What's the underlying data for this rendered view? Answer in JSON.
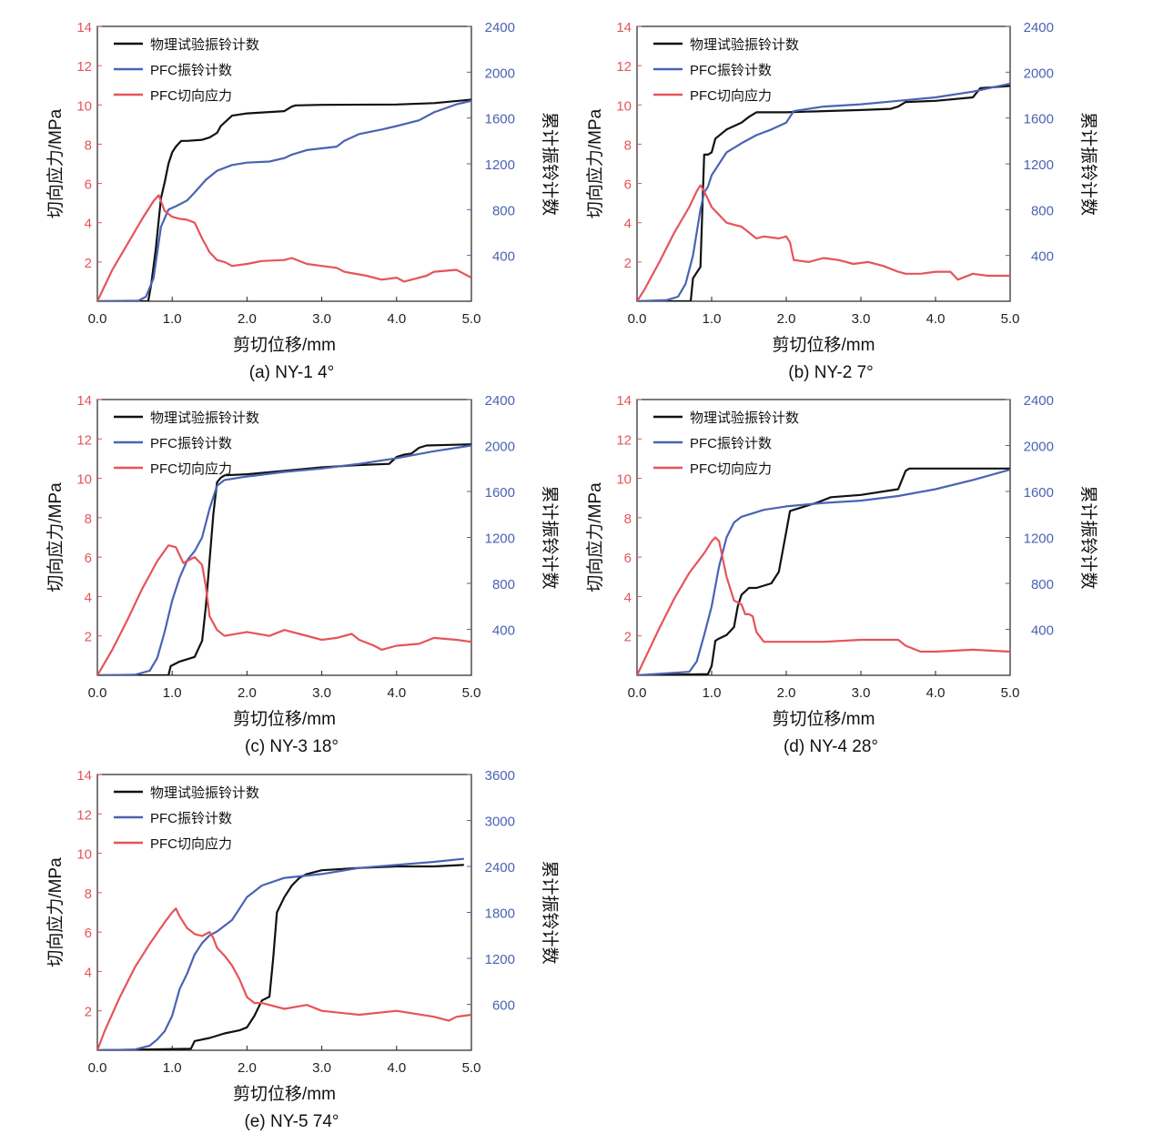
{
  "figure": {
    "left_axis_color": "#e5545a",
    "right_axis_color": "#4a63b3",
    "series_colors": {
      "experiment": "#111111",
      "pfc_ring": "#4a63b3",
      "pfc_stress": "#e5545a"
    }
  },
  "chart_data": [
    {
      "type": "line",
      "caption": "(a) NY-1   4°",
      "xlabel": "剪切位移/mm",
      "ylabel_left": "切向应力/MPa",
      "ylabel_right": "累计振铃计数",
      "xlim": [
        0,
        5
      ],
      "xticks": [
        "0.0",
        "1.0",
        "2.0",
        "3.0",
        "4.0",
        "5.0"
      ],
      "ylim_left": [
        0,
        14
      ],
      "yticks_left": [
        "2",
        "4",
        "6",
        "8",
        "10",
        "12",
        "14"
      ],
      "ylim_right": [
        0,
        2400
      ],
      "yticks_right": [
        "400",
        "800",
        "1200",
        "1600",
        "2000",
        "2400"
      ],
      "legend": [
        "物理试验振铃计数",
        "PFC振铃计数",
        "PFC切向应力"
      ],
      "series": [
        {
          "name": "物理试验振铃计数",
          "axis": "right",
          "x": [
            0,
            0.68,
            0.72,
            0.78,
            0.85,
            0.9,
            0.95,
            1.0,
            1.05,
            1.12,
            1.2,
            1.4,
            1.5,
            1.6,
            1.65,
            1.75,
            1.8,
            2.0,
            2.5,
            2.6,
            2.65,
            3.0,
            4.0,
            4.5,
            5.0
          ],
          "y": [
            0,
            0,
            150,
            450,
            900,
            1040,
            1200,
            1300,
            1350,
            1400,
            1400,
            1410,
            1430,
            1470,
            1530,
            1590,
            1620,
            1640,
            1660,
            1700,
            1710,
            1715,
            1718,
            1730,
            1760
          ]
        },
        {
          "name": "PFC振铃计数",
          "axis": "right",
          "x": [
            0,
            0.55,
            0.65,
            0.75,
            0.85,
            0.95,
            1.05,
            1.2,
            1.3,
            1.45,
            1.6,
            1.8,
            2.0,
            2.3,
            2.5,
            2.6,
            2.8,
            3.2,
            3.3,
            3.5,
            3.8,
            4.0,
            4.3,
            4.5,
            4.8,
            5.0
          ],
          "y": [
            0,
            5,
            40,
            200,
            650,
            800,
            830,
            880,
            950,
            1060,
            1140,
            1190,
            1210,
            1220,
            1250,
            1280,
            1320,
            1350,
            1400,
            1460,
            1500,
            1530,
            1580,
            1650,
            1720,
            1750
          ]
        },
        {
          "name": "PFC切向应力",
          "axis": "left",
          "x": [
            0,
            0.2,
            0.4,
            0.6,
            0.75,
            0.82,
            0.9,
            1.0,
            1.1,
            1.2,
            1.3,
            1.4,
            1.5,
            1.6,
            1.7,
            1.8,
            2.0,
            2.2,
            2.5,
            2.6,
            2.8,
            3.0,
            3.2,
            3.3,
            3.6,
            3.8,
            4.0,
            4.1,
            4.2,
            4.4,
            4.5,
            4.8,
            5.0
          ],
          "y": [
            0,
            1.6,
            2.9,
            4.2,
            5.1,
            5.4,
            4.6,
            4.3,
            4.2,
            4.15,
            4.0,
            3.2,
            2.5,
            2.1,
            2.0,
            1.8,
            1.9,
            2.05,
            2.1,
            2.2,
            1.9,
            1.8,
            1.7,
            1.5,
            1.3,
            1.1,
            1.2,
            1.0,
            1.1,
            1.3,
            1.5,
            1.6,
            1.2
          ]
        }
      ]
    },
    {
      "type": "line",
      "caption": "(b) NY-2   7°",
      "xlabel": "剪切位移/mm",
      "ylabel_left": "切向应力/MPa",
      "ylabel_right": "累计振铃计数",
      "xlim": [
        0,
        5
      ],
      "xticks": [
        "0.0",
        "1.0",
        "2.0",
        "3.0",
        "4.0",
        "5.0"
      ],
      "ylim_left": [
        0,
        14
      ],
      "yticks_left": [
        "2",
        "4",
        "6",
        "8",
        "10",
        "12",
        "14"
      ],
      "ylim_right": [
        0,
        2400
      ],
      "yticks_right": [
        "400",
        "800",
        "1200",
        "1600",
        "2000",
        "2400"
      ],
      "legend": [
        "物理试验振铃计数",
        "PFC振铃计数",
        "PFC切向应力"
      ],
      "series": [
        {
          "name": "物理试验振铃计数",
          "axis": "right",
          "x": [
            0,
            0.72,
            0.75,
            0.85,
            0.9,
            0.95,
            1.0,
            1.05,
            1.2,
            1.4,
            1.5,
            1.6,
            2.0,
            2.5,
            3.0,
            3.4,
            3.5,
            3.6,
            4.0,
            4.5,
            4.6,
            4.8,
            5.0
          ],
          "y": [
            0,
            0,
            200,
            300,
            1280,
            1280,
            1300,
            1420,
            1500,
            1560,
            1610,
            1650,
            1650,
            1660,
            1670,
            1680,
            1700,
            1740,
            1750,
            1780,
            1860,
            1870,
            1880
          ]
        },
        {
          "name": "PFC振铃计数",
          "axis": "right",
          "x": [
            0,
            0.4,
            0.55,
            0.65,
            0.75,
            0.85,
            0.9,
            0.95,
            1.0,
            1.1,
            1.2,
            1.4,
            1.6,
            1.8,
            2.0,
            2.1,
            2.5,
            3.0,
            3.5,
            4.0,
            4.5,
            5.0
          ],
          "y": [
            0,
            10,
            40,
            150,
            400,
            800,
            950,
            1000,
            1100,
            1200,
            1300,
            1380,
            1450,
            1500,
            1560,
            1660,
            1700,
            1720,
            1750,
            1780,
            1830,
            1900
          ]
        },
        {
          "name": "PFC切向应力",
          "axis": "left",
          "x": [
            0,
            0.1,
            0.3,
            0.5,
            0.7,
            0.8,
            0.85,
            0.9,
            1.0,
            1.1,
            1.2,
            1.3,
            1.4,
            1.5,
            1.6,
            1.7,
            1.9,
            2.0,
            2.05,
            2.1,
            2.3,
            2.5,
            2.7,
            2.9,
            3.1,
            3.3,
            3.5,
            3.6,
            3.8,
            4.0,
            4.2,
            4.3,
            4.5,
            4.7,
            5.0
          ],
          "y": [
            0,
            0.6,
            2.0,
            3.5,
            4.8,
            5.6,
            5.9,
            5.6,
            4.8,
            4.4,
            4.0,
            3.9,
            3.8,
            3.5,
            3.2,
            3.3,
            3.2,
            3.3,
            3.0,
            2.1,
            2.0,
            2.2,
            2.1,
            1.9,
            2.0,
            1.8,
            1.5,
            1.4,
            1.4,
            1.5,
            1.5,
            1.1,
            1.4,
            1.3,
            1.3
          ]
        }
      ]
    },
    {
      "type": "line",
      "caption": "(c) NY-3   18°",
      "xlabel": "剪切位移/mm",
      "ylabel_left": "切向应力/MPa",
      "ylabel_right": "累计振铃计数",
      "xlim": [
        0,
        5
      ],
      "xticks": [
        "0.0",
        "1.0",
        "2.0",
        "3.0",
        "4.0",
        "5.0"
      ],
      "ylim_left": [
        0,
        14
      ],
      "yticks_left": [
        "2",
        "4",
        "6",
        "8",
        "10",
        "12",
        "14"
      ],
      "ylim_right": [
        0,
        2400
      ],
      "yticks_right": [
        "400",
        "800",
        "1200",
        "1600",
        "2000",
        "2400"
      ],
      "legend": [
        "物理试验振铃计数",
        "PFC振铃计数",
        "PFC切向应力"
      ],
      "series": [
        {
          "name": "物理试验振铃计数",
          "axis": "right",
          "x": [
            0,
            0.95,
            0.98,
            1.1,
            1.3,
            1.4,
            1.45,
            1.5,
            1.55,
            1.6,
            1.65,
            1.7,
            2.0,
            2.5,
            3.0,
            3.5,
            3.9,
            4.0,
            4.1,
            4.2,
            4.3,
            4.4,
            5.0
          ],
          "y": [
            0,
            0,
            80,
            120,
            160,
            300,
            600,
            1000,
            1400,
            1680,
            1720,
            1740,
            1750,
            1780,
            1810,
            1830,
            1840,
            1900,
            1920,
            1930,
            1980,
            2000,
            2010
          ]
        },
        {
          "name": "PFC振铃计数",
          "axis": "right",
          "x": [
            0,
            0.5,
            0.7,
            0.8,
            0.9,
            1.0,
            1.1,
            1.2,
            1.3,
            1.4,
            1.5,
            1.6,
            1.7,
            2.0,
            2.5,
            3.0,
            3.5,
            4.0,
            4.5,
            5.0
          ],
          "y": [
            0,
            5,
            40,
            150,
            380,
            650,
            850,
            1000,
            1080,
            1200,
            1450,
            1650,
            1700,
            1730,
            1770,
            1800,
            1840,
            1890,
            1950,
            2000
          ]
        },
        {
          "name": "PFC切向应力",
          "axis": "left",
          "x": [
            0,
            0.2,
            0.4,
            0.6,
            0.8,
            0.95,
            1.05,
            1.15,
            1.3,
            1.4,
            1.45,
            1.5,
            1.6,
            1.7,
            2.0,
            2.3,
            2.5,
            2.7,
            3.0,
            3.2,
            3.4,
            3.5,
            3.7,
            3.8,
            4.0,
            4.3,
            4.5,
            4.8,
            5.0
          ],
          "y": [
            0,
            1.3,
            2.8,
            4.4,
            5.8,
            6.6,
            6.5,
            5.7,
            6.0,
            5.6,
            4.5,
            3.0,
            2.3,
            2.0,
            2.2,
            2.0,
            2.3,
            2.1,
            1.8,
            1.9,
            2.1,
            1.8,
            1.5,
            1.3,
            1.5,
            1.6,
            1.9,
            1.8,
            1.7
          ]
        }
      ]
    },
    {
      "type": "line",
      "caption": "(d) NY-4   28°",
      "xlabel": "剪切位移/mm",
      "ylabel_left": "切向应力/MPa",
      "ylabel_right": "累计振铃计数",
      "xlim": [
        0,
        5
      ],
      "xticks": [
        "0.0",
        "1.0",
        "2.0",
        "3.0",
        "4.0",
        "5.0"
      ],
      "ylim_left": [
        0,
        14
      ],
      "yticks_left": [
        "2",
        "4",
        "6",
        "8",
        "10",
        "12",
        "14"
      ],
      "ylim_right": [
        0,
        2400
      ],
      "yticks_right": [
        "400",
        "800",
        "1200",
        "1600",
        "2000",
        "2400"
      ],
      "legend": [
        "物理试验振铃计数",
        "PFC振铃计数",
        "PFC切向应力"
      ],
      "series": [
        {
          "name": "物理试验振铃计数",
          "axis": "right",
          "x": [
            0,
            0.95,
            1.0,
            1.05,
            1.1,
            1.2,
            1.3,
            1.35,
            1.4,
            1.5,
            1.6,
            1.7,
            1.8,
            1.9,
            2.0,
            2.05,
            2.1,
            2.4,
            2.6,
            3.0,
            3.5,
            3.6,
            3.65,
            4.0,
            4.5,
            5.0
          ],
          "y": [
            0,
            10,
            80,
            300,
            320,
            350,
            420,
            600,
            700,
            760,
            760,
            780,
            800,
            900,
            1250,
            1430,
            1440,
            1500,
            1550,
            1570,
            1620,
            1780,
            1800,
            1800,
            1800,
            1800
          ]
        },
        {
          "name": "PFC振铃计数",
          "axis": "right",
          "x": [
            0,
            0.7,
            0.8,
            0.9,
            1.0,
            1.1,
            1.2,
            1.3,
            1.4,
            1.5,
            1.7,
            2.0,
            2.5,
            3.0,
            3.5,
            4.0,
            4.5,
            5.0
          ],
          "y": [
            0,
            30,
            120,
            350,
            600,
            950,
            1200,
            1330,
            1380,
            1400,
            1440,
            1470,
            1500,
            1520,
            1560,
            1620,
            1700,
            1790
          ]
        },
        {
          "name": "PFC切向应力",
          "axis": "left",
          "x": [
            0,
            0.1,
            0.3,
            0.5,
            0.7,
            0.9,
            1.0,
            1.05,
            1.1,
            1.2,
            1.3,
            1.4,
            1.45,
            1.5,
            1.55,
            1.6,
            1.7,
            2.0,
            2.5,
            3.0,
            3.5,
            3.6,
            3.8,
            4.0,
            4.5,
            5.0
          ],
          "y": [
            0,
            0.8,
            2.4,
            3.9,
            5.2,
            6.2,
            6.8,
            7.0,
            6.8,
            5.0,
            3.8,
            3.6,
            3.1,
            3.1,
            3.0,
            2.2,
            1.7,
            1.7,
            1.7,
            1.8,
            1.8,
            1.5,
            1.2,
            1.2,
            1.3,
            1.2
          ]
        }
      ]
    },
    {
      "type": "line",
      "caption": "(e) NY-5   74°",
      "xlabel": "剪切位移/mm",
      "ylabel_left": "切向应力/MPa",
      "ylabel_right": "累计振铃计数",
      "xlim": [
        0,
        5
      ],
      "xticks": [
        "0.0",
        "1.0",
        "2.0",
        "3.0",
        "4.0",
        "5.0"
      ],
      "ylim_left": [
        0,
        14
      ],
      "yticks_left": [
        "2",
        "4",
        "6",
        "8",
        "10",
        "12",
        "14"
      ],
      "ylim_right": [
        0,
        3600
      ],
      "yticks_right": [
        "600",
        "1200",
        "1800",
        "2400",
        "3000",
        "3600"
      ],
      "legend": [
        "物理试验振铃计数",
        "PFC振铃计数",
        "PFC切向应力"
      ],
      "series": [
        {
          "name": "物理试验振铃计数",
          "axis": "right",
          "x": [
            0,
            1.25,
            1.3,
            1.5,
            1.7,
            1.9,
            2.0,
            2.1,
            2.2,
            2.3,
            2.35,
            2.4,
            2.5,
            2.6,
            2.7,
            2.8,
            3.0,
            3.5,
            4.0,
            4.5,
            4.9
          ],
          "y": [
            0,
            20,
            120,
            160,
            220,
            260,
            300,
            450,
            650,
            700,
            1200,
            1800,
            2000,
            2150,
            2250,
            2300,
            2350,
            2380,
            2400,
            2400,
            2420
          ]
        },
        {
          "name": "PFC振铃计数",
          "axis": "right",
          "x": [
            0,
            0.5,
            0.7,
            0.8,
            0.9,
            1.0,
            1.1,
            1.2,
            1.3,
            1.4,
            1.5,
            1.6,
            1.8,
            1.9,
            2.0,
            2.2,
            2.5,
            3.0,
            3.5,
            4.0,
            4.5,
            4.9
          ],
          "y": [
            0,
            10,
            60,
            140,
            250,
            450,
            800,
            1000,
            1250,
            1400,
            1500,
            1550,
            1700,
            1850,
            2000,
            2150,
            2250,
            2300,
            2380,
            2420,
            2460,
            2500
          ]
        },
        {
          "name": "PFC切向应力",
          "axis": "left",
          "x": [
            0,
            0.1,
            0.3,
            0.5,
            0.7,
            0.9,
            1.0,
            1.05,
            1.1,
            1.2,
            1.3,
            1.4,
            1.5,
            1.55,
            1.6,
            1.7,
            1.8,
            1.9,
            2.0,
            2.1,
            2.2,
            2.5,
            2.8,
            3.0,
            3.5,
            4.0,
            4.5,
            4.7,
            4.8,
            5.0
          ],
          "y": [
            0,
            1.0,
            2.7,
            4.2,
            5.4,
            6.5,
            7.0,
            7.2,
            6.8,
            6.2,
            5.9,
            5.8,
            6.0,
            5.7,
            5.2,
            4.8,
            4.3,
            3.6,
            2.7,
            2.4,
            2.4,
            2.1,
            2.3,
            2.0,
            1.8,
            2.0,
            1.7,
            1.5,
            1.7,
            1.8
          ]
        }
      ]
    }
  ]
}
